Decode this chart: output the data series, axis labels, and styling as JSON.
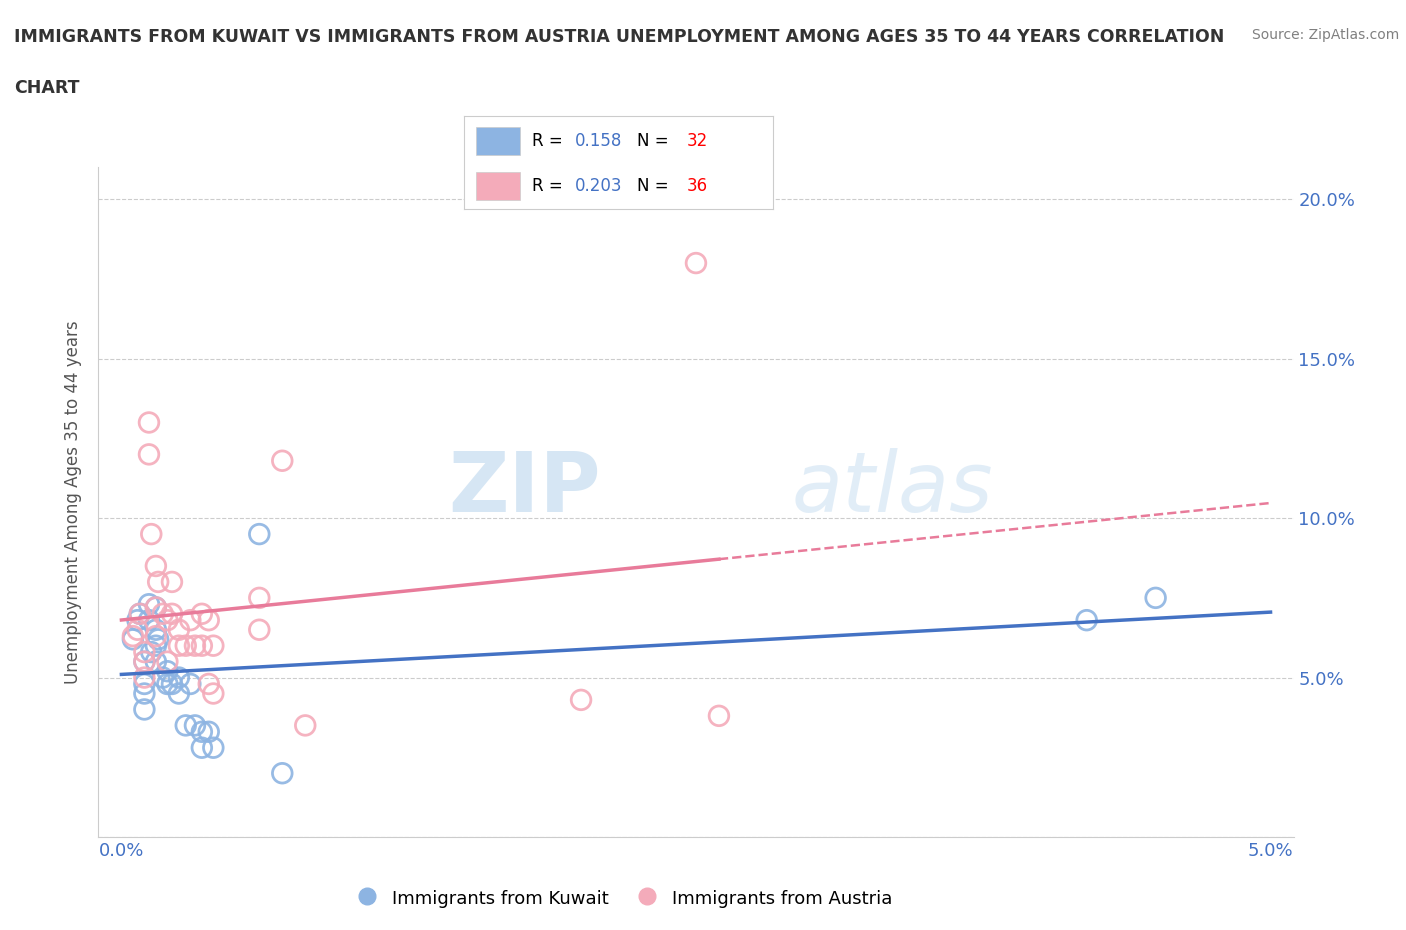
{
  "title_line1": "IMMIGRANTS FROM KUWAIT VS IMMIGRANTS FROM AUSTRIA UNEMPLOYMENT AMONG AGES 35 TO 44 YEARS CORRELATION",
  "title_line2": "CHART",
  "source": "Source: ZipAtlas.com",
  "ylabel": "Unemployment Among Ages 35 to 44 years",
  "xlim": [
    -0.001,
    0.051
  ],
  "ylim": [
    0.0,
    0.21
  ],
  "xtick_vals": [
    0.0,
    0.01,
    0.02,
    0.03,
    0.04,
    0.05
  ],
  "xticklabels": [
    "0.0%",
    "",
    "",
    "",
    "",
    "5.0%"
  ],
  "ytick_vals": [
    0.0,
    0.05,
    0.1,
    0.15,
    0.2
  ],
  "yticklabels_right": [
    "",
    "5.0%",
    "10.0%",
    "15.0%",
    "20.0%"
  ],
  "kuwait_color": "#8DB4E2",
  "austria_color": "#F4ABBA",
  "kuwait_edge_color": "#6699CC",
  "austria_edge_color": "#E87B9A",
  "kuwait_R": "0.158",
  "kuwait_N": "32",
  "austria_R": "0.203",
  "austria_N": "36",
  "kuwait_x": [
    0.0005,
    0.0007,
    0.0008,
    0.001,
    0.001,
    0.001,
    0.001,
    0.0012,
    0.0012,
    0.0013,
    0.0015,
    0.0015,
    0.0015,
    0.0015,
    0.0016,
    0.0018,
    0.002,
    0.002,
    0.0022,
    0.0025,
    0.0025,
    0.0028,
    0.003,
    0.0032,
    0.0035,
    0.0035,
    0.0038,
    0.004,
    0.006,
    0.007,
    0.042,
    0.045
  ],
  "kuwait_y": [
    0.062,
    0.068,
    0.07,
    0.055,
    0.048,
    0.045,
    0.04,
    0.073,
    0.068,
    0.058,
    0.072,
    0.065,
    0.06,
    0.055,
    0.062,
    0.05,
    0.052,
    0.048,
    0.048,
    0.05,
    0.045,
    0.035,
    0.048,
    0.035,
    0.033,
    0.028,
    0.033,
    0.028,
    0.095,
    0.02,
    0.068,
    0.075
  ],
  "austria_x": [
    0.0005,
    0.0007,
    0.0008,
    0.001,
    0.001,
    0.001,
    0.0012,
    0.0012,
    0.0013,
    0.0015,
    0.0015,
    0.0015,
    0.0016,
    0.0018,
    0.002,
    0.002,
    0.0022,
    0.0022,
    0.0025,
    0.0025,
    0.0028,
    0.003,
    0.0032,
    0.0035,
    0.0035,
    0.0038,
    0.0038,
    0.004,
    0.004,
    0.006,
    0.006,
    0.007,
    0.008,
    0.02,
    0.025,
    0.026
  ],
  "austria_y": [
    0.063,
    0.065,
    0.07,
    0.058,
    0.055,
    0.05,
    0.13,
    0.12,
    0.095,
    0.085,
    0.072,
    0.063,
    0.08,
    0.07,
    0.068,
    0.055,
    0.08,
    0.07,
    0.065,
    0.06,
    0.06,
    0.068,
    0.06,
    0.07,
    0.06,
    0.068,
    0.048,
    0.06,
    0.045,
    0.075,
    0.065,
    0.118,
    0.035,
    0.043,
    0.18,
    0.038
  ],
  "watermark_zip": "ZIP",
  "watermark_atlas": "atlas",
  "trend_kuwait_color": "#4472C4",
  "trend_austria_color": "#E87B9A",
  "grid_color": "#CCCCCC",
  "title_color": "#333333",
  "axis_label_color": "#4472C4",
  "source_color": "#808080",
  "legend_R_color": "#4472C4",
  "legend_N_color": "#FF0000"
}
